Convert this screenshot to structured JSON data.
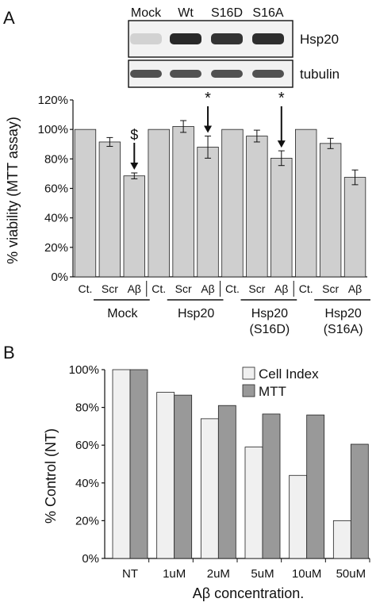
{
  "panelA": {
    "letter": "A",
    "blot": {
      "lanes": [
        "Mock",
        "Wt",
        "S16D",
        "S16A"
      ],
      "bands": [
        {
          "label": "Hsp20",
          "intensity": [
            0.12,
            0.95,
            0.9,
            0.92
          ]
        },
        {
          "label": "tubulin",
          "intensity": [
            0.75,
            0.75,
            0.75,
            0.75
          ]
        }
      ]
    }
  },
  "panelB": {
    "letter": "B"
  },
  "chart_data": [
    {
      "type": "bar",
      "ylabel": "% viability (MTT assay)",
      "ylim": [
        0,
        120
      ],
      "yticks": [
        "0%",
        "20%",
        "40%",
        "60%",
        "80%",
        "100%",
        "120%"
      ],
      "grid": false,
      "bar_color": "#cfcfcf",
      "categories": [
        "Ct.",
        "Scr",
        "Aβ",
        "Ct.",
        "Scr",
        "Aβ",
        "Ct.",
        "Scr",
        "Aβ",
        "Ct.",
        "Scr",
        "Aβ"
      ],
      "values": [
        100,
        91.5,
        68.5,
        100,
        102,
        88,
        100,
        95.5,
        80.5,
        100,
        90.5,
        67.5
      ],
      "errors": [
        0,
        3,
        2,
        0,
        4,
        7.5,
        0,
        4,
        5,
        0,
        3.5,
        5
      ],
      "groups": [
        {
          "label": "Mock",
          "sub": ""
        },
        {
          "label": "Hsp20",
          "sub": ""
        },
        {
          "label": "Hsp20",
          "sub": "(S16D)"
        },
        {
          "label": "Hsp20",
          "sub": "(S16A)"
        }
      ],
      "annotations": [
        {
          "bar": 2,
          "text": "$"
        },
        {
          "bar": 5,
          "text": "*"
        },
        {
          "bar": 8,
          "text": "*"
        }
      ]
    },
    {
      "type": "bar",
      "xlabel": "Aβ concentration.",
      "ylabel": "% Control (NT)",
      "ylim": [
        0,
        100
      ],
      "yticks": [
        "0%",
        "20%",
        "40%",
        "60%",
        "80%",
        "100%"
      ],
      "grid": false,
      "categories": [
        "NT",
        "1uM",
        "2uM",
        "5uM",
        "10uM",
        "50uM"
      ],
      "legend_position": "top-right",
      "series": [
        {
          "name": "Cell Index",
          "color": "#f0f0f0",
          "values": [
            100,
            88,
            74,
            59,
            44,
            20
          ]
        },
        {
          "name": "MTT",
          "color": "#999999",
          "values": [
            100,
            86.5,
            81,
            76.5,
            76,
            60.5
          ]
        }
      ]
    }
  ]
}
